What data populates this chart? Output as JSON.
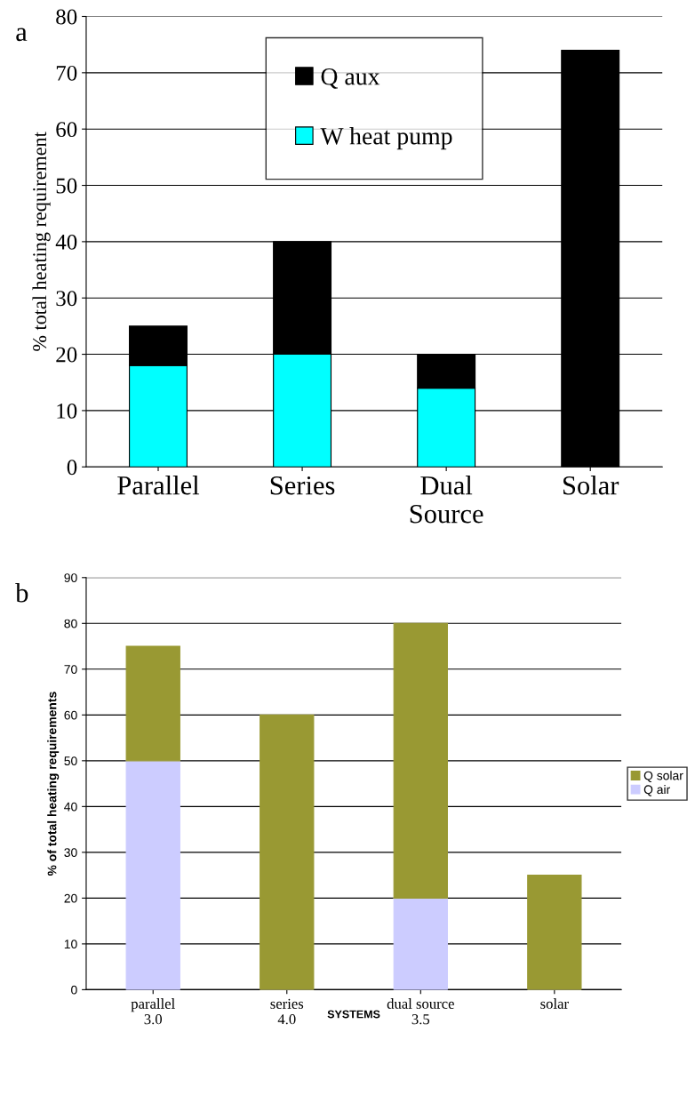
{
  "chart_data": [
    {
      "type": "bar",
      "stacked": true,
      "ylabel": "% total heating requirement",
      "annotations": [
        "a"
      ],
      "categories": [
        "Parallel",
        "Series",
        "Dual\nSource",
        "Solar"
      ],
      "series": [
        {
          "name": "W heat pump",
          "color": "#00ffff",
          "values": [
            18,
            20,
            14,
            0
          ]
        },
        {
          "name": "Q aux",
          "color": "#000000",
          "values": [
            7,
            20,
            6,
            74
          ]
        }
      ],
      "ylim": [
        0,
        80
      ],
      "yticks": [
        0,
        10,
        20,
        30,
        40,
        50,
        60,
        70,
        80
      ],
      "grid": "y",
      "legend": "top"
    },
    {
      "type": "bar",
      "stacked": true,
      "ylabel": "% of total heating requirements",
      "xlabel": "SYSTEMS",
      "annotations": [
        "b"
      ],
      "categories": [
        "parallel\n3.0",
        "series\n4.0",
        "dual source\n3.5",
        "solar"
      ],
      "series": [
        {
          "name": "Q air",
          "color": "#ccccff",
          "values": [
            50,
            0,
            20,
            0
          ]
        },
        {
          "name": "Q solar",
          "color": "#999933",
          "values": [
            25,
            60,
            60,
            25
          ]
        }
      ],
      "ylim": [
        0,
        90
      ],
      "yticks": [
        0,
        10,
        20,
        30,
        40,
        50,
        60,
        70,
        80,
        90
      ],
      "grid": "y",
      "legend": "right"
    }
  ]
}
